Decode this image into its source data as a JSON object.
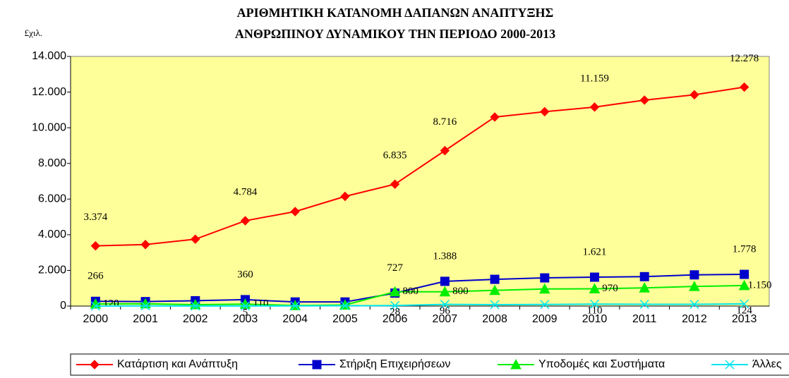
{
  "chart_data": {
    "type": "line",
    "title": "ΑΡΙΘΜΗΤΙΚΗ ΚΑΤΑΝΟΜΗ ΔΑΠΑΝΩΝ ΑΝΑΠΤΥΞΗΣ",
    "subtitle": "ΑΝΘΡΩΠΙΝΟΥ ΔΥΝΑΜΙΚΟΥ ΤΗΝ ΠΕΡΙΟΔΟ 2000-2013",
    "y_label": "£χιλ.",
    "categories": [
      "2000",
      "2001",
      "2002",
      "2003",
      "2004",
      "2005",
      "2006",
      "2007",
      "2008",
      "2009",
      "2010",
      "2011",
      "2012",
      "2013"
    ],
    "series": [
      {
        "name": "Κατάρτιση και Ανάπτυξη",
        "color": "#ff0000",
        "marker": "diamond",
        "values": [
          3374,
          3450,
          3750,
          4784,
          5300,
          6150,
          6835,
          8716,
          10600,
          10900,
          11159,
          11550,
          11850,
          12278
        ],
        "value_labels": [
          "3.374",
          null,
          null,
          "4.784",
          null,
          null,
          "6.835",
          "8.716",
          null,
          null,
          "11.159",
          null,
          null,
          "12.278"
        ]
      },
      {
        "name": "Στήριξη Επιχειρήσεων",
        "color": "#0000cc",
        "marker": "square",
        "values": [
          266,
          250,
          300,
          360,
          230,
          230,
          727,
          1388,
          1500,
          1580,
          1621,
          1650,
          1750,
          1778
        ],
        "value_labels": [
          "266",
          null,
          null,
          "360",
          null,
          null,
          "727",
          "1.388",
          null,
          null,
          "1.621",
          null,
          null,
          "1.778"
        ]
      },
      {
        "name": "Υποδομές και Συστήματα",
        "color": "#00ee00",
        "marker": "triangle",
        "values": [
          120,
          130,
          80,
          110,
          30,
          60,
          800,
          800,
          880,
          960,
          970,
          1020,
          1100,
          1150
        ],
        "value_labels": [
          "120",
          null,
          null,
          "110",
          null,
          null,
          "800",
          "800",
          null,
          null,
          "970",
          null,
          null,
          "1.150"
        ]
      },
      {
        "name": "Άλλες",
        "color": "#00e5ee",
        "marker": "x",
        "values": [
          0,
          10,
          5,
          5,
          10,
          20,
          28,
          96,
          80,
          90,
          110,
          100,
          100,
          124
        ],
        "value_labels": [
          null,
          null,
          null,
          "5",
          null,
          null,
          "28",
          "96",
          null,
          null,
          "110",
          null,
          null,
          "124"
        ]
      }
    ],
    "ylim": [
      0,
      14000
    ],
    "yticks": [
      0,
      {
        "value": 2000,
        "label": "2.000"
      },
      {
        "value": 4000,
        "label": "4.000"
      },
      {
        "value": 6000,
        "label": "6.000"
      },
      {
        "value": 8000,
        "label": "8.000"
      },
      {
        "value": 10000,
        "label": "10.000"
      },
      {
        "value": 12000,
        "label": "12.000"
      },
      {
        "value": 14000,
        "label": "14.000"
      }
    ],
    "grid": false,
    "legend": "bottom",
    "background": "#ffff99"
  }
}
